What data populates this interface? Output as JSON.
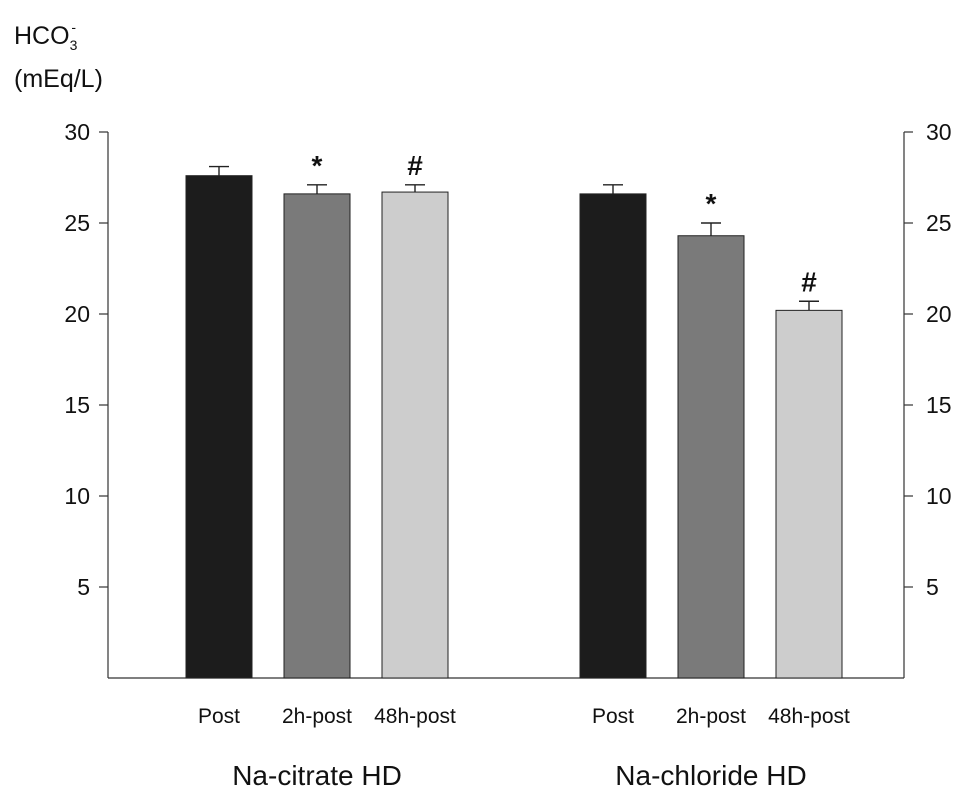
{
  "chart_data": {
    "type": "bar",
    "ylabel": {
      "line1_main": "HCO",
      "line1_sub": "3",
      "line1_sup": "-",
      "line2": "(mEq/L)"
    },
    "ylim": [
      0,
      30
    ],
    "yticks": [
      5,
      10,
      15,
      20,
      25,
      30
    ],
    "grid": false,
    "groups": [
      {
        "name": "Na-citrate HD",
        "categories": [
          "Post",
          "2h-post",
          "48h-post"
        ],
        "values": [
          27.6,
          26.6,
          26.7
        ],
        "errors": [
          0.5,
          0.5,
          0.4
        ],
        "markers": [
          "",
          "*",
          "#"
        ]
      },
      {
        "name": "Na-chloride HD",
        "categories": [
          "Post",
          "2h-post",
          "48h-post"
        ],
        "values": [
          26.6,
          24.3,
          20.2
        ],
        "errors": [
          0.5,
          0.7,
          0.5
        ],
        "markers": [
          "",
          "*",
          "#"
        ]
      }
    ],
    "bar_colors": [
      "#1c1c1c",
      "#7a7a7a",
      "#cdcdcd"
    ]
  }
}
